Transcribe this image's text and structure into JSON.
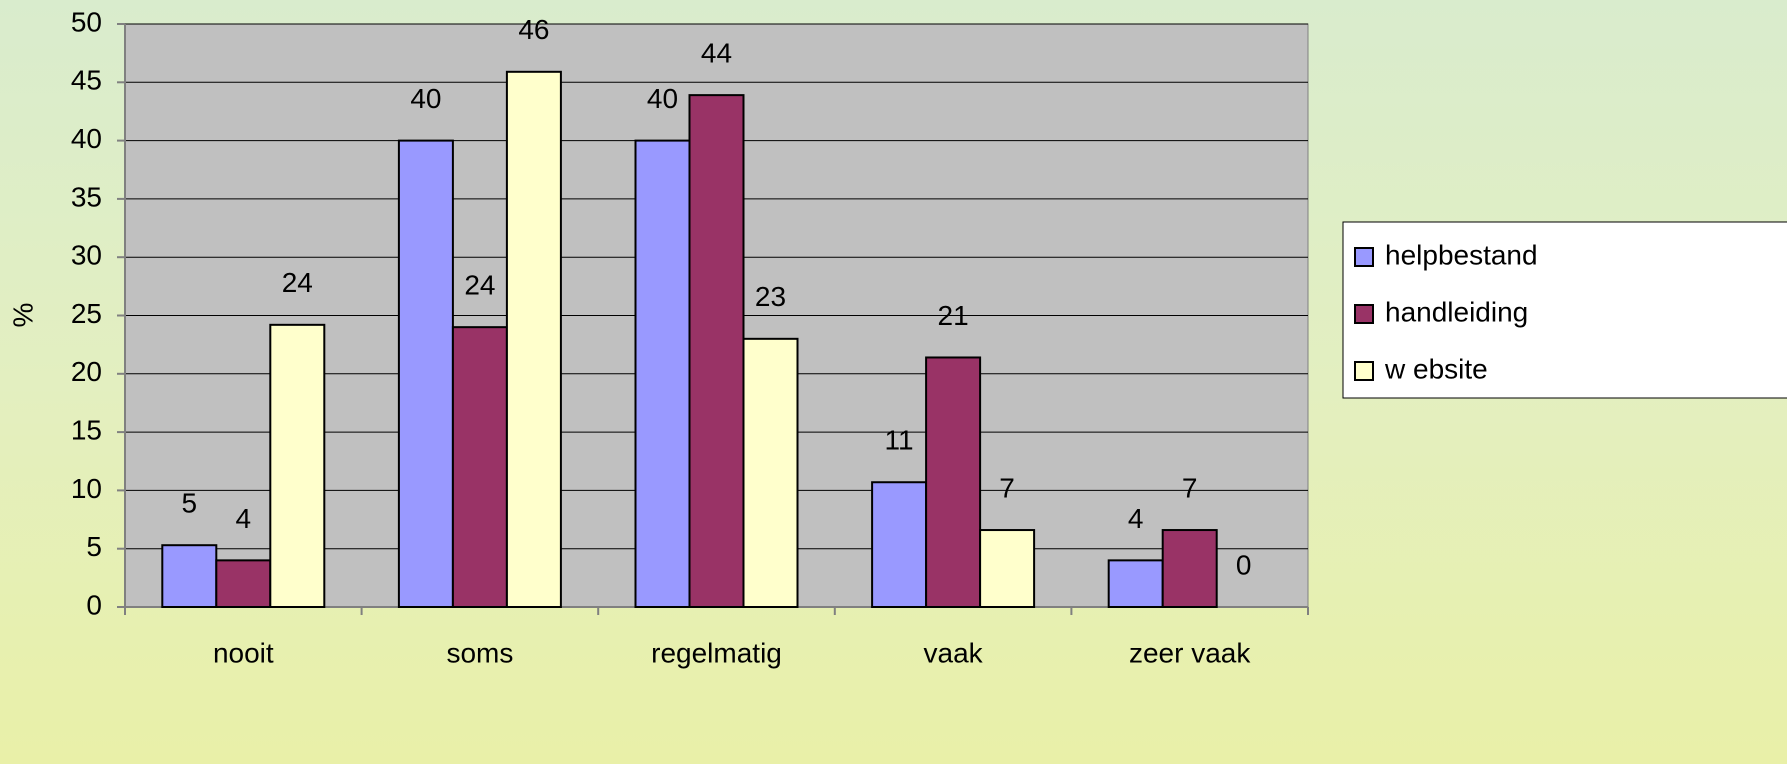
{
  "chart_data": {
    "type": "bar",
    "y_label": "%",
    "categories": [
      "nooit",
      "soms",
      "regelmatig",
      "vaak",
      "zeer vaak"
    ],
    "series": [
      {
        "name": "helpbestand",
        "color": "#9999ff",
        "values": [
          5.3,
          40,
          40,
          10.7,
          4
        ],
        "value_labels": [
          "5",
          "40",
          "40",
          "11",
          "4"
        ]
      },
      {
        "name": "handleiding",
        "color": "#993366",
        "values": [
          4,
          24,
          43.9,
          21.4,
          6.6
        ],
        "value_labels": [
          "4",
          "24",
          "44",
          "21",
          "7"
        ]
      },
      {
        "name": "w ebsite",
        "color": "#ffffcc",
        "values": [
          24.2,
          45.9,
          23,
          6.6,
          0
        ],
        "value_labels": [
          "24",
          "46",
          "23",
          "7",
          "0"
        ]
      }
    ],
    "ylim": [
      0,
      50
    ],
    "yticks": [
      0,
      5,
      10,
      15,
      20,
      25,
      30,
      35,
      40,
      45,
      50
    ],
    "grid": true,
    "legend": "right"
  }
}
